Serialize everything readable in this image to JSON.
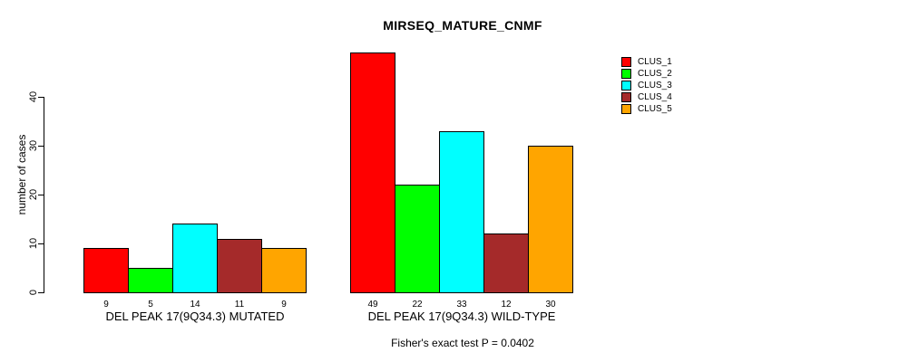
{
  "chart_data": {
    "type": "bar",
    "title": "MIRSEQ_MATURE_CNMF",
    "ylabel": "number of cases",
    "xlabel": "",
    "ylim": [
      0,
      40
    ],
    "yticks": [
      0,
      10,
      20,
      30,
      40
    ],
    "grid": false,
    "legend_position": "top-right",
    "annotation": "Fisher's exact test P = 0.0402",
    "categories": [
      "DEL PEAK 17(9Q34.3) MUTATED",
      "DEL PEAK 17(9Q34.3) WILD-TYPE"
    ],
    "series": [
      {
        "name": "CLUS_1",
        "color": "#FF0000",
        "values": [
          9,
          49
        ]
      },
      {
        "name": "CLUS_2",
        "color": "#00FF00",
        "values": [
          5,
          22
        ]
      },
      {
        "name": "CLUS_3",
        "color": "#00FFFF",
        "values": [
          14,
          33
        ]
      },
      {
        "name": "CLUS_4",
        "color": "#A52A2A",
        "values": [
          11,
          12
        ]
      },
      {
        "name": "CLUS_5",
        "color": "#FFA500",
        "values": [
          9,
          30
        ]
      }
    ]
  },
  "colors": {
    "background": "#FFFFFF",
    "axis": "#000000",
    "text": "#000000"
  }
}
